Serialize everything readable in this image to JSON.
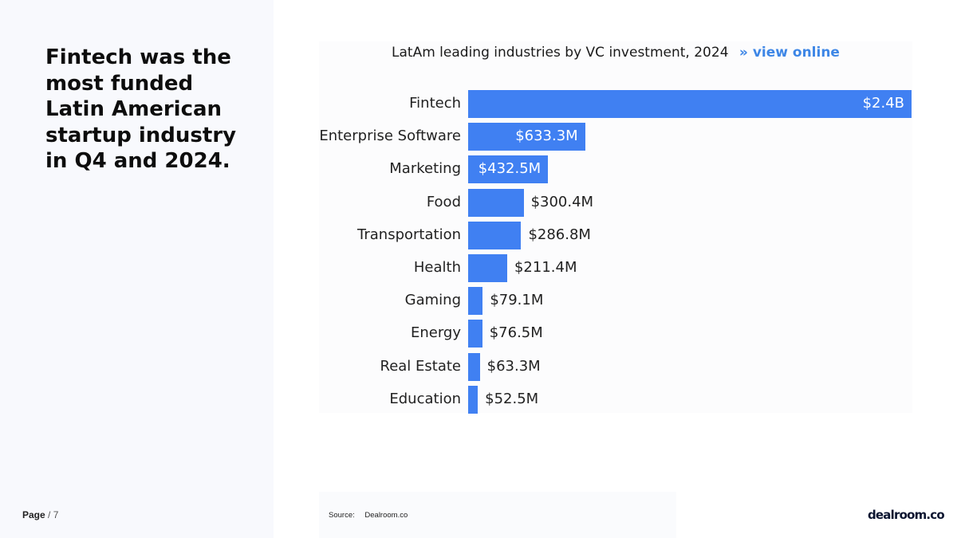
{
  "headline": "Fintech was the most funded Latin American startup industry in Q4 and 2024.",
  "footer": {
    "page_label": "Page",
    "page_total": "/ 7"
  },
  "source": {
    "label": "Source:",
    "value": "Dealroom.co"
  },
  "brand": {
    "logo_text": "dealroom.co"
  },
  "colors": {
    "bar": "#4080f2",
    "link": "#3d86e6",
    "panel": "#f8f9fd"
  },
  "chart_data": {
    "type": "bar",
    "orientation": "horizontal",
    "title": "LatAm leading industries by VC investment, 2024",
    "title_link": "» view online",
    "categories": [
      "Fintech",
      "Enterprise Software",
      "Marketing",
      "Food",
      "Transportation",
      "Health",
      "Gaming",
      "Energy",
      "Real Estate",
      "Education"
    ],
    "values": [
      2400,
      633.3,
      432.5,
      300.4,
      286.8,
      211.4,
      79.1,
      76.5,
      63.3,
      52.5
    ],
    "unit": "$M",
    "value_labels": [
      "$2.4B",
      "$633.3M",
      "$432.5M",
      "$300.4M",
      "$286.8M",
      "$211.4M",
      "$79.1M",
      "$76.5M",
      "$63.3M",
      "$52.5M"
    ],
    "xlim": [
      0,
      2400
    ],
    "grid": false,
    "legend": "none"
  }
}
